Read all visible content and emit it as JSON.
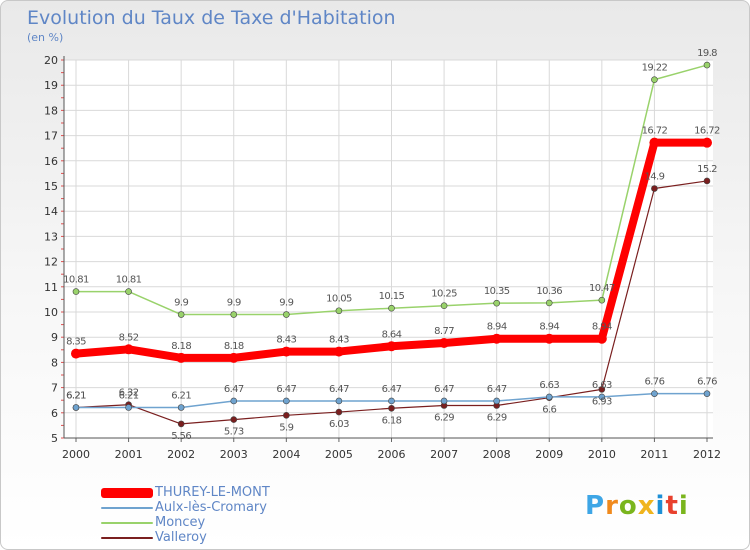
{
  "chart_data": {
    "type": "line",
    "title": "Evolution du Taux de Taxe d'Habitation",
    "subtitle": "(en %)",
    "x": [
      "2000",
      "2001",
      "2002",
      "2003",
      "2004",
      "2005",
      "2006",
      "2007",
      "2008",
      "2009",
      "2010",
      "2011",
      "2012"
    ],
    "ylim": [
      5,
      20
    ],
    "yticks": [
      5,
      6,
      7,
      8,
      9,
      10,
      11,
      12,
      13,
      14,
      15,
      16,
      17,
      18,
      19,
      20
    ],
    "grid": true,
    "legend_position": "bottom-left",
    "series": [
      {
        "name": "THUREY-LE-MONT",
        "color": "#ff0000",
        "width": 8,
        "marker": 5,
        "values": [
          8.35,
          8.52,
          8.18,
          8.18,
          8.43,
          8.43,
          8.64,
          8.77,
          8.94,
          8.94,
          8.94,
          16.72,
          16.72
        ]
      },
      {
        "name": "Aulx-lès-Cromary",
        "color": "#6fa3cf",
        "width": 1.5,
        "marker": 3,
        "values": [
          6.21,
          6.21,
          6.21,
          6.47,
          6.47,
          6.47,
          6.47,
          6.47,
          6.47,
          6.63,
          6.63,
          6.76,
          6.76
        ]
      },
      {
        "name": "Moncey",
        "color": "#99d26b",
        "width": 1.5,
        "marker": 3,
        "values": [
          10.81,
          10.81,
          9.9,
          9.9,
          9.9,
          10.05,
          10.15,
          10.25,
          10.35,
          10.36,
          10.47,
          19.22,
          19.8
        ]
      },
      {
        "name": "Valleroy",
        "color": "#7a1f1f",
        "width": 1.2,
        "marker": 3,
        "values": [
          6.21,
          6.32,
          5.56,
          5.73,
          5.9,
          6.03,
          6.18,
          6.29,
          6.29,
          6.6,
          6.93,
          14.9,
          15.2
        ]
      }
    ]
  },
  "logo": {
    "letters": [
      "P",
      "r",
      "o",
      "x",
      "i",
      "t",
      "i"
    ],
    "colors": [
      "#3ea6e6",
      "#f08a1d",
      "#7ab51d",
      "#f0b41d",
      "#1d8fd6",
      "#e8402d",
      "#7ab51d"
    ]
  }
}
